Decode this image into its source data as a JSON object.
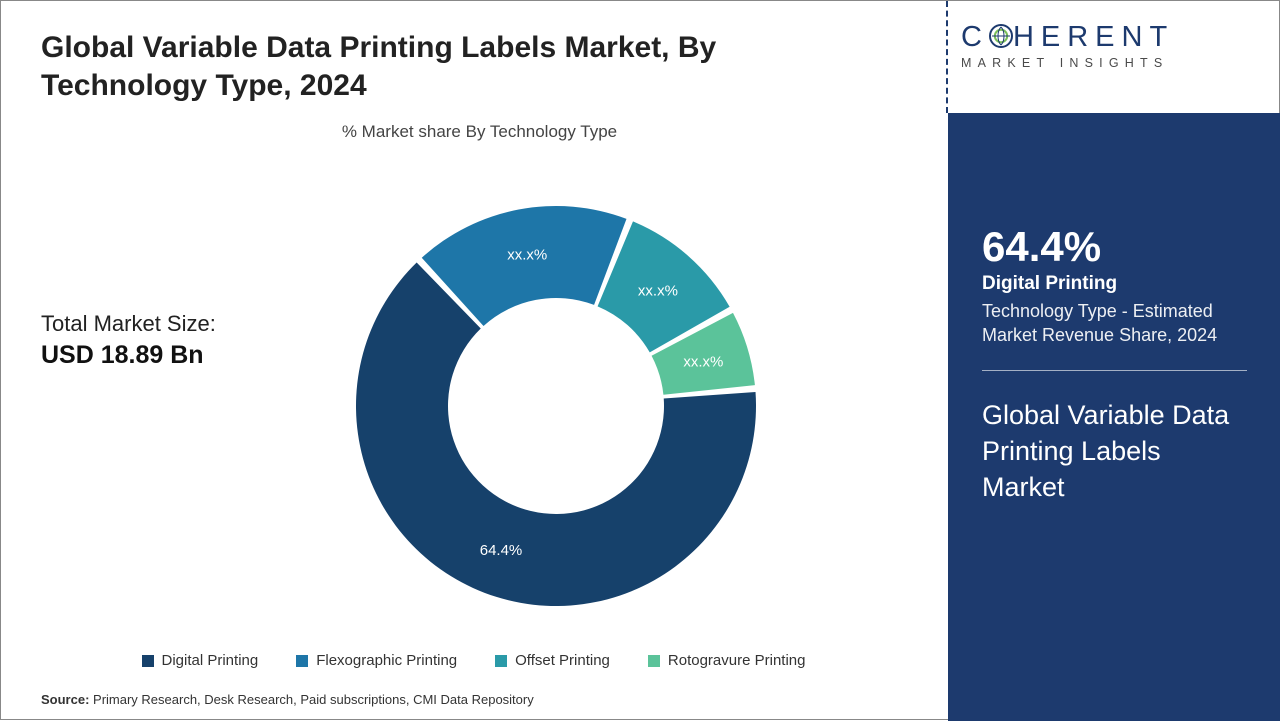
{
  "title": "Global Variable Data Printing Labels Market, By Technology Type, 2024",
  "chart_subtitle": "% Market share By Technology Type",
  "market_size": {
    "label": "Total Market Size:",
    "value": "USD 18.89 Bn"
  },
  "donut": {
    "type": "donut",
    "inner_radius_pct": 54,
    "outer_radius_pct": 100,
    "gap_deg": 2,
    "background": "#ffffff",
    "start_angle_deg": -5,
    "slices": [
      {
        "name": "Digital Printing",
        "value": 64.4,
        "label": "64.4%",
        "color": "#16416b"
      },
      {
        "name": "Flexographic Printing",
        "value": 18.0,
        "label": "xx.x%",
        "color": "#1e76a8"
      },
      {
        "name": "Offset Printing",
        "value": 11.0,
        "label": "xx.x%",
        "color": "#2a9aa8"
      },
      {
        "name": "Rotogravure Printing",
        "value": 6.6,
        "label": "xx.x%",
        "color": "#5bc39a"
      }
    ]
  },
  "legend": [
    {
      "label": "Digital Printing",
      "color": "#16416b"
    },
    {
      "label": "Flexographic Printing",
      "color": "#1e76a8"
    },
    {
      "label": "Offset Printing",
      "color": "#2a9aa8"
    },
    {
      "label": "Rotogravure Printing",
      "color": "#5bc39a"
    }
  ],
  "source": {
    "prefix": "Source:",
    "text": " Primary Research, Desk Research, Paid subscriptions, CMI Data Repository"
  },
  "logo": {
    "line1_a": "C",
    "line1_b": "HERENT",
    "line2": "MARKET INSIGHTS",
    "ring_outer": "#1d3a6e",
    "ring_inner": "#7bbf5a"
  },
  "panel": {
    "bg": "#1d3a6e",
    "stat_pct": "64.4%",
    "stat_segment": "Digital Printing",
    "stat_desc": "Technology Type - Estimated Market Revenue Share, 2024",
    "title": "Global Variable Data Printing Labels Market"
  }
}
